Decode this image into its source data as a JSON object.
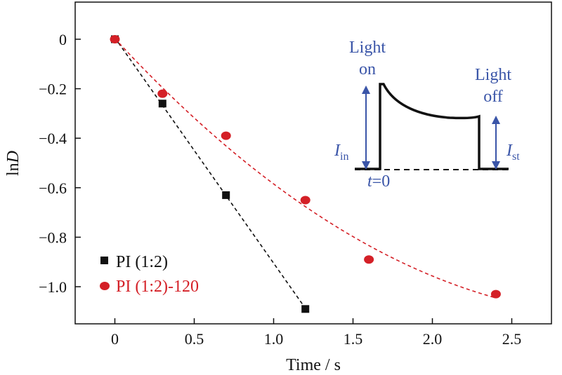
{
  "chart_data": {
    "type": "scatter",
    "xlabel": "Time / s",
    "ylabel_main": "ln",
    "ylabel_italic": "D",
    "xlim": [
      -0.25,
      2.75
    ],
    "ylim": [
      -1.15,
      0.15
    ],
    "x_ticks": [
      0,
      0.5,
      1.0,
      1.5,
      2.0,
      2.5
    ],
    "x_tick_labels": [
      "0",
      "0.5",
      "1.0",
      "1.5",
      "2.0",
      "2.5"
    ],
    "y_ticks": [
      0,
      -0.2,
      -0.4,
      -0.6,
      -0.8,
      -1.0
    ],
    "y_tick_labels": [
      "0",
      "−0.2",
      "−0.4",
      "−0.6",
      "−0.8",
      "−1.0"
    ],
    "grid": false,
    "legend_position": "bottom-left",
    "series": [
      {
        "name": "PI (1:2)",
        "color": "#111111",
        "marker": "square",
        "fit": "linear",
        "x": [
          0,
          0.3,
          0.7,
          1.2
        ],
        "y": [
          0,
          -0.26,
          -0.63,
          -1.09
        ]
      },
      {
        "name": "PI (1:2)-120",
        "color": "#d42027",
        "marker": "circle",
        "fit": "quadratic",
        "x": [
          0,
          0.3,
          0.7,
          1.2,
          1.6,
          2.4
        ],
        "y": [
          0,
          -0.22,
          -0.39,
          -0.65,
          -0.89,
          -1.03
        ]
      }
    ],
    "inset": {
      "light_on": [
        "Light",
        "on"
      ],
      "light_off": [
        "Light",
        "off"
      ],
      "i_in_main": "I",
      "i_in_sub": "in",
      "i_st_main": "I",
      "i_st_sub": "st",
      "t_zero_italic": "t",
      "t_zero_rest": "=0",
      "color": "#3a55a8"
    }
  }
}
